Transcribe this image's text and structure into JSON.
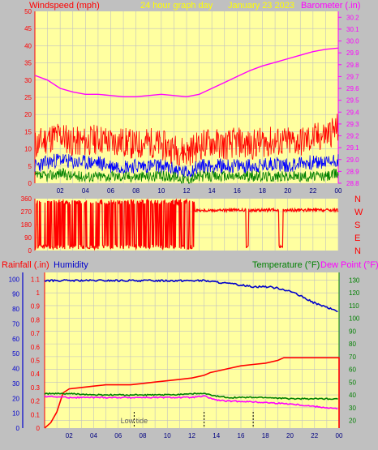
{
  "header": {
    "left": "Windspeed (mph)",
    "center": "24 hour graph day",
    "date": "January 23 2023",
    "right": "Barometer (.in)"
  },
  "colors": {
    "background": "#c0c0c0",
    "plot_bg": "#ffffa0",
    "grid": "#c0c0c0",
    "axis_red": "#ff0000",
    "axis_magenta": "#ff00ff",
    "axis_blue": "#0000cc",
    "axis_green": "#008000",
    "header_yellow": "#ffff00"
  },
  "chart_data": [
    {
      "type": "line",
      "panel": "wind-barometer",
      "title": "24 hour graph day   January 23 2023",
      "xlabel": "",
      "ylabel": "Windspeed (mph)",
      "y2label": "Barometer (.in)",
      "x_ticks": [
        "02",
        "04",
        "06",
        "08",
        "10",
        "12",
        "14",
        "16",
        "18",
        "20",
        "22",
        "00"
      ],
      "xlim": [
        0,
        24
      ],
      "ylim": [
        0,
        50
      ],
      "y_ticks": [
        0,
        5,
        10,
        15,
        20,
        25,
        30,
        35,
        40,
        45,
        50
      ],
      "y2lim": [
        28.8,
        30.25
      ],
      "y2_ticks": [
        28.8,
        28.9,
        29.0,
        29.1,
        29.2,
        29.3,
        29.4,
        29.5,
        29.6,
        29.7,
        29.8,
        29.9,
        30.0,
        30.1,
        30.2
      ],
      "grid": true,
      "series": [
        {
          "name": "Barometer",
          "axis": "right",
          "color": "#ff00ff",
          "x": [
            0,
            1,
            2,
            3,
            4,
            5,
            6,
            7,
            8,
            9,
            10,
            11,
            12,
            13,
            14,
            15,
            16,
            17,
            18,
            19,
            20,
            21,
            22,
            23,
            24
          ],
          "y": [
            29.71,
            29.67,
            29.6,
            29.57,
            29.55,
            29.55,
            29.54,
            29.53,
            29.53,
            29.54,
            29.55,
            29.54,
            29.53,
            29.55,
            29.6,
            29.65,
            29.7,
            29.75,
            29.79,
            29.82,
            29.85,
            29.88,
            29.91,
            29.93,
            29.94
          ]
        },
        {
          "name": "Gust",
          "axis": "left",
          "color": "#ff0000",
          "x": [
            0,
            1,
            2,
            3,
            4,
            5,
            6,
            7,
            8,
            9,
            10,
            11,
            12,
            13,
            14,
            15,
            16,
            17,
            18,
            19,
            20,
            21,
            22,
            23,
            24
          ],
          "y": [
            11,
            13,
            14,
            12,
            12,
            13,
            12,
            12,
            11,
            12,
            11,
            10,
            9,
            11,
            12,
            11,
            12,
            11,
            12,
            12,
            12,
            12,
            13,
            14,
            16
          ]
        },
        {
          "name": "Wind Speed",
          "axis": "left",
          "color": "#0000ff",
          "x": [
            0,
            1,
            2,
            3,
            4,
            5,
            6,
            7,
            8,
            9,
            10,
            11,
            12,
            13,
            14,
            15,
            16,
            17,
            18,
            19,
            20,
            21,
            22,
            23,
            24
          ],
          "y": [
            5,
            6,
            7,
            6,
            6,
            6,
            5,
            5,
            5,
            5,
            5,
            4,
            3,
            5,
            5,
            5,
            5,
            5,
            5,
            6,
            5,
            6,
            6,
            6,
            7
          ]
        },
        {
          "name": "Average",
          "axis": "left",
          "color": "#008000",
          "x": [
            0,
            1,
            2,
            3,
            4,
            5,
            6,
            7,
            8,
            9,
            10,
            11,
            12,
            13,
            14,
            15,
            16,
            17,
            18,
            19,
            20,
            21,
            22,
            23,
            24
          ],
          "y": [
            2,
            2,
            3,
            2,
            2,
            2,
            2,
            2,
            2,
            2,
            2,
            2,
            1,
            2,
            2,
            2,
            2,
            2,
            2,
            2,
            2,
            2,
            2,
            2,
            3
          ]
        }
      ]
    },
    {
      "type": "scatter",
      "panel": "wind-direction",
      "xlim": [
        0,
        24
      ],
      "ylim": [
        0,
        360
      ],
      "y_ticks": [
        0,
        90,
        180,
        270,
        360
      ],
      "direction_labels": [
        "N",
        "W",
        "S",
        "E",
        "N"
      ],
      "series": [
        {
          "name": "Wind Direction",
          "color": "#ff0000",
          "x": [
            0,
            0.5,
            1,
            1.5,
            2,
            2.5,
            3,
            3.5,
            4,
            4.5,
            5,
            5.5,
            6,
            6.5,
            7,
            7.5,
            8,
            8.5,
            9,
            9.5,
            10,
            10.5,
            11,
            11.5,
            12,
            12.5,
            13,
            14,
            15,
            16,
            16.5,
            17,
            18,
            19,
            19.5,
            20,
            21,
            22,
            23,
            24
          ],
          "y": [
            20,
            340,
            25,
            330,
            15,
            20,
            30,
            340,
            20,
            10,
            335,
            20,
            345,
            15,
            350,
            25,
            340,
            10,
            355,
            20,
            345,
            15,
            350,
            20,
            340,
            350,
            280,
            275,
            280,
            270,
            285,
            20,
            275,
            280,
            280,
            15,
            275,
            280,
            270,
            275
          ]
        }
      ]
    },
    {
      "type": "line",
      "panel": "rain-humidity-temp",
      "legend": [
        {
          "label": "Rainfall (.in)",
          "color": "#ff0000"
        },
        {
          "label": "Humidity",
          "color": "#0000cc"
        },
        {
          "label": "Temperature (°F)",
          "color": "#008000"
        },
        {
          "label": "Dew Point (°F)",
          "color": "#ff00ff"
        }
      ],
      "x_ticks": [
        "02",
        "04",
        "06",
        "08",
        "10",
        "12",
        "14",
        "16",
        "18",
        "20",
        "22",
        "00"
      ],
      "xlim": [
        0,
        24
      ],
      "rain_ticks": [
        0,
        0.1,
        0.2,
        0.3,
        0.4,
        0.5,
        0.6,
        0.7,
        0.8,
        0.9,
        1,
        1.1
      ],
      "rain_lim": [
        0,
        1.15
      ],
      "humidity_ticks": [
        0,
        10,
        20,
        30,
        40,
        50,
        60,
        70,
        80,
        90,
        100
      ],
      "humidity_lim": [
        0,
        104.5
      ],
      "temp_ticks": [
        20,
        30,
        40,
        50,
        60,
        70,
        80,
        90,
        100,
        110,
        120,
        130
      ],
      "temp_lim": [
        14,
        136
      ],
      "annotations": [
        {
          "text": "Low tide",
          "x": 7.3
        }
      ],
      "tide_marks": [
        7.3,
        13.0,
        17.0
      ],
      "series": [
        {
          "name": "Rainfall",
          "axis": "rain",
          "color": "#ff0000",
          "x": [
            0,
            0.5,
            1,
            1.5,
            2,
            3,
            4,
            5,
            6,
            7,
            8,
            9,
            10,
            11,
            12,
            13,
            13.5,
            14,
            15,
            16,
            17,
            18,
            19,
            19.5,
            20,
            21,
            22,
            23,
            24,
            24
          ],
          "y": [
            0,
            0.04,
            0.12,
            0.26,
            0.29,
            0.3,
            0.31,
            0.32,
            0.32,
            0.32,
            0.33,
            0.34,
            0.35,
            0.36,
            0.37,
            0.39,
            0.41,
            0.42,
            0.44,
            0.46,
            0.47,
            0.48,
            0.5,
            0.52,
            0.52,
            0.52,
            0.52,
            0.52,
            0.52,
            0
          ]
        },
        {
          "name": "Humidity",
          "axis": "humidity",
          "color": "#0000cc",
          "x": [
            0,
            2,
            4,
            6,
            8,
            10,
            12,
            13,
            14,
            15,
            16,
            17,
            18,
            19,
            20,
            21,
            22,
            23,
            24
          ],
          "y": [
            99,
            99,
            99,
            99,
            99,
            99,
            99,
            99,
            98,
            97,
            96,
            95,
            95,
            94,
            92,
            88,
            84,
            81,
            78
          ]
        },
        {
          "name": "Temperature",
          "axis": "temp",
          "color": "#008000",
          "x": [
            0,
            2,
            4,
            6,
            8,
            10,
            12,
            13,
            14,
            15,
            16,
            18,
            20,
            22,
            24
          ],
          "y": [
            41,
            41,
            40,
            40,
            40,
            40,
            41,
            41,
            39,
            38,
            38,
            38,
            37,
            37,
            37
          ]
        },
        {
          "name": "Dew Point",
          "axis": "temp",
          "color": "#ff00ff",
          "x": [
            0,
            2,
            4,
            6,
            8,
            10,
            12,
            13,
            14,
            15,
            16,
            18,
            20,
            21,
            22,
            23,
            24
          ],
          "y": [
            39,
            38,
            38,
            38,
            38,
            38,
            38,
            39,
            36,
            35,
            35,
            34,
            33,
            32,
            31,
            30,
            29
          ]
        }
      ]
    }
  ]
}
